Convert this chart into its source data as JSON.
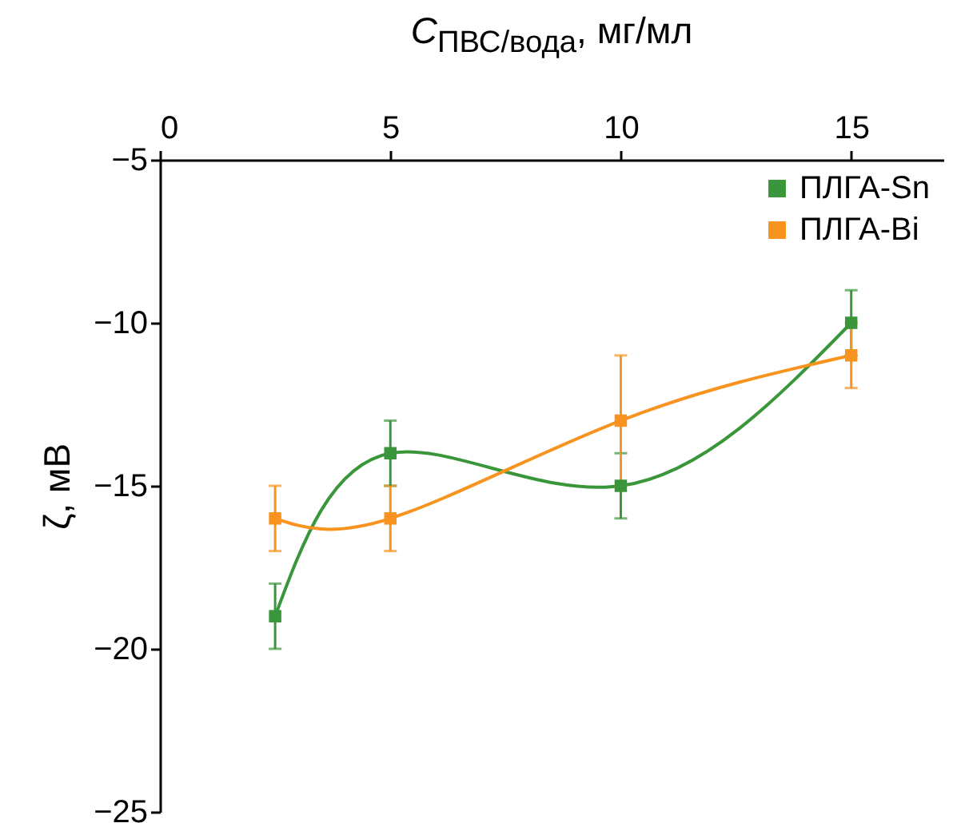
{
  "chart_data": {
    "type": "line",
    "xlabel": "C$_{ПВС/вода}$, мг/мл",
    "ylabel": "ζ, мВ",
    "x": [
      2.5,
      5,
      10,
      15
    ],
    "series": [
      {
        "name": "ПЛГА-Sn",
        "color": "#3a963a",
        "values": [
          -19,
          -14,
          -15,
          -10
        ],
        "errors": [
          1,
          1,
          1,
          1
        ]
      },
      {
        "name": "ПЛГА-Bi",
        "color": "#f7931e",
        "values": [
          -16,
          -16,
          -13,
          -11
        ],
        "errors": [
          1,
          1,
          2,
          1
        ]
      }
    ],
    "xlim": [
      0,
      17
    ],
    "xticks": [
      0,
      5,
      10,
      15
    ],
    "ylim": [
      -25,
      -5
    ],
    "yticks": [
      -25,
      -20,
      -15,
      -10,
      -5
    ],
    "grid": false,
    "legend": "top right",
    "marker": "square",
    "line_style": "solid"
  }
}
